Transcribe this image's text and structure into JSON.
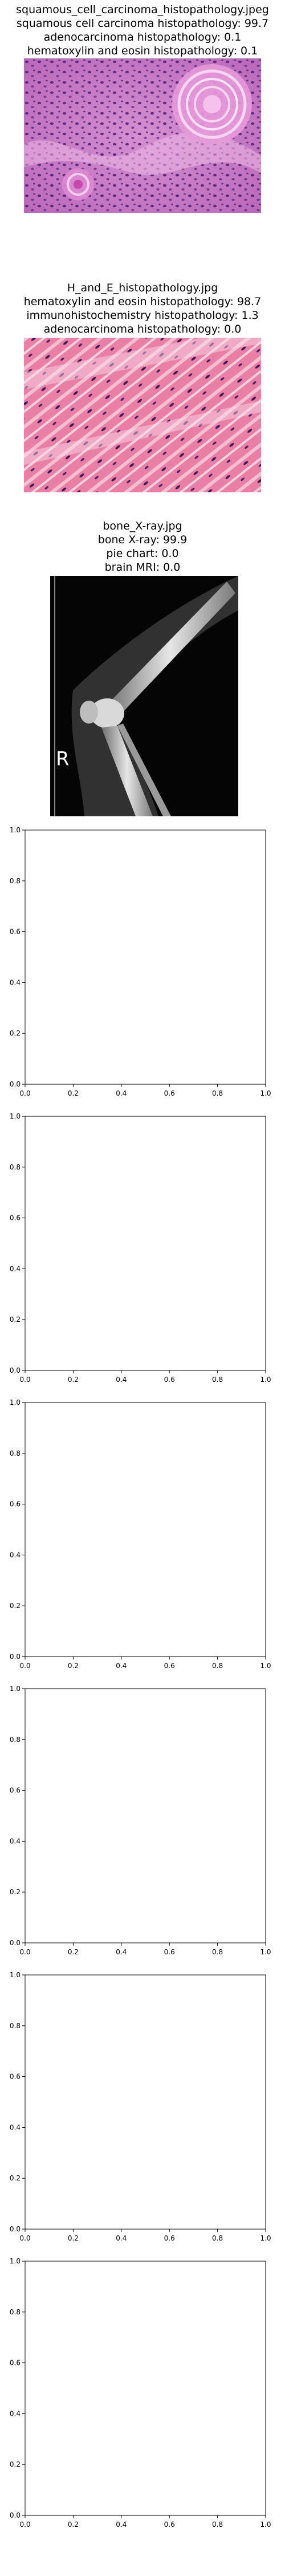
{
  "image_panels": [
    {
      "filename": "squamous_cell_carcinoma_histopathology.jpeg",
      "predictions": [
        {
          "label": "squamous cell carcinoma histopathology",
          "score": "99.7"
        },
        {
          "label": "adenocarcinoma histopathology",
          "score": "0.1"
        },
        {
          "label": "hematoxylin and eosin histopathology",
          "score": "0.1"
        }
      ]
    },
    {
      "filename": "H_and_E_histopathology.jpg",
      "predictions": [
        {
          "label": "hematoxylin and eosin histopathology",
          "score": "98.7"
        },
        {
          "label": "immunohistochemistry histopathology",
          "score": "1.3"
        },
        {
          "label": "adenocarcinoma histopathology",
          "score": "0.0"
        }
      ]
    },
    {
      "filename": "bone_X-ray.jpg",
      "predictions": [
        {
          "label": "bone X-ray",
          "score": "99.9"
        },
        {
          "label": "pie chart",
          "score": "0.0"
        },
        {
          "label": "brain MRI",
          "score": "0.0"
        }
      ],
      "overlay_letter": "R"
    }
  ],
  "chart_data": [
    {
      "type": "scatter",
      "title": "",
      "xlabel": "",
      "ylabel": "",
      "xlim": [
        0.0,
        1.0
      ],
      "ylim": [
        0.0,
        1.0
      ],
      "xticks": [
        "0.0",
        "0.2",
        "0.4",
        "0.6",
        "0.8",
        "1.0"
      ],
      "yticks": [
        "0.0",
        "0.2",
        "0.4",
        "0.6",
        "0.8",
        "1.0"
      ],
      "series": []
    },
    {
      "type": "scatter",
      "title": "",
      "xlabel": "",
      "ylabel": "",
      "xlim": [
        0.0,
        1.0
      ],
      "ylim": [
        0.0,
        1.0
      ],
      "xticks": [
        "0.0",
        "0.2",
        "0.4",
        "0.6",
        "0.8",
        "1.0"
      ],
      "yticks": [
        "0.0",
        "0.2",
        "0.4",
        "0.6",
        "0.8",
        "1.0"
      ],
      "series": []
    },
    {
      "type": "scatter",
      "title": "",
      "xlabel": "",
      "ylabel": "",
      "xlim": [
        0.0,
        1.0
      ],
      "ylim": [
        0.0,
        1.0
      ],
      "xticks": [
        "0.0",
        "0.2",
        "0.4",
        "0.6",
        "0.8",
        "1.0"
      ],
      "yticks": [
        "0.0",
        "0.2",
        "0.4",
        "0.6",
        "0.8",
        "1.0"
      ],
      "series": []
    },
    {
      "type": "scatter",
      "title": "",
      "xlabel": "",
      "ylabel": "",
      "xlim": [
        0.0,
        1.0
      ],
      "ylim": [
        0.0,
        1.0
      ],
      "xticks": [
        "0.0",
        "0.2",
        "0.4",
        "0.6",
        "0.8",
        "1.0"
      ],
      "yticks": [
        "0.0",
        "0.2",
        "0.4",
        "0.6",
        "0.8",
        "1.0"
      ],
      "series": []
    },
    {
      "type": "scatter",
      "title": "",
      "xlabel": "",
      "ylabel": "",
      "xlim": [
        0.0,
        1.0
      ],
      "ylim": [
        0.0,
        1.0
      ],
      "xticks": [
        "0.0",
        "0.2",
        "0.4",
        "0.6",
        "0.8",
        "1.0"
      ],
      "yticks": [
        "0.0",
        "0.2",
        "0.4",
        "0.6",
        "0.8",
        "1.0"
      ],
      "series": []
    },
    {
      "type": "scatter",
      "title": "",
      "xlabel": "",
      "ylabel": "",
      "xlim": [
        0.0,
        1.0
      ],
      "ylim": [
        0.0,
        1.0
      ],
      "xticks": [
        "0.0",
        "0.2",
        "0.4",
        "0.6",
        "0.8",
        "1.0"
      ],
      "yticks": [
        "0.0",
        "0.2",
        "0.4",
        "0.6",
        "0.8",
        "1.0"
      ],
      "series": []
    }
  ]
}
